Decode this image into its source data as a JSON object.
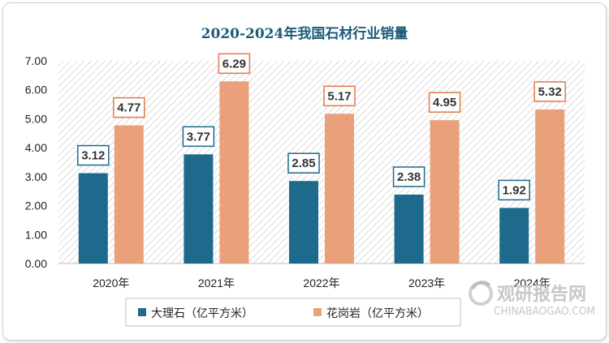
{
  "chart_data": {
    "type": "bar",
    "title": "2020-2024年我国石材行业销量",
    "categories": [
      "2020年",
      "2021年",
      "2022年",
      "2023年",
      "2024年"
    ],
    "series": [
      {
        "name": "大理石（亿平方米）",
        "values": [
          3.12,
          3.77,
          2.85,
          2.38,
          1.92
        ],
        "color": "#1d6a8c",
        "label_border": "#1d6a8c"
      },
      {
        "name": "花岗岩（亿平方米）",
        "values": [
          4.77,
          6.29,
          5.17,
          4.95,
          5.32
        ],
        "color": "#e9a07b",
        "label_border": "#e07a45"
      }
    ],
    "y_ticks": [
      "0.00",
      "1.00",
      "2.00",
      "3.00",
      "4.00",
      "5.00",
      "6.00",
      "7.00"
    ],
    "ylim": [
      0,
      7
    ],
    "grid": false,
    "legend_position": "bottom",
    "plot_background": "diagonal-hatch"
  },
  "watermark": {
    "text_cn": "观研报告网",
    "text_en": "CHINABAOGAO.COM"
  }
}
